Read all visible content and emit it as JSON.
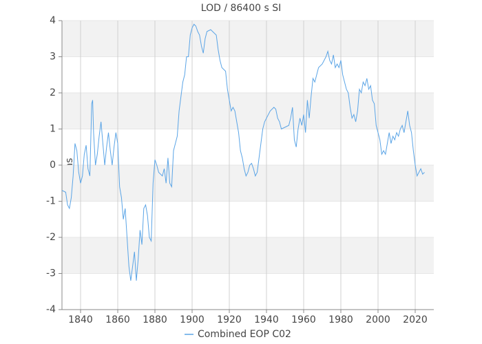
{
  "chart_data": {
    "type": "line",
    "title": "LOD / 86400 s SI",
    "y_label": "ms",
    "x": [
      1830,
      1832,
      1833,
      1834,
      1835,
      1836,
      1837,
      1838,
      1839,
      1840,
      1841,
      1842,
      1843,
      1844,
      1845,
      1846,
      1846.5,
      1847,
      1848,
      1849,
      1850,
      1851,
      1852,
      1853,
      1854,
      1855,
      1856,
      1857,
      1858,
      1859,
      1860,
      1861,
      1862,
      1863,
      1864,
      1865,
      1866,
      1867,
      1868,
      1869,
      1870,
      1871,
      1872,
      1873,
      1874,
      1875,
      1876,
      1877,
      1878,
      1879,
      1880,
      1881,
      1882,
      1884,
      1885,
      1886,
      1887,
      1888,
      1889,
      1890,
      1892,
      1893,
      1895,
      1896,
      1897,
      1898,
      1899,
      1900,
      1901,
      1902,
      1903,
      1904,
      1905,
      1906,
      1907,
      1908,
      1910,
      1911,
      1912,
      1913,
      1914,
      1915,
      1916,
      1918,
      1919,
      1920,
      1921,
      1922,
      1923,
      1924,
      1925,
      1926,
      1927,
      1928,
      1929,
      1930,
      1931,
      1932,
      1933,
      1934,
      1935,
      1936,
      1937,
      1938,
      1939,
      1940,
      1942,
      1944,
      1945,
      1946,
      1947,
      1948,
      1950,
      1952,
      1953,
      1954,
      1955,
      1956,
      1957,
      1958,
      1959,
      1960,
      1961,
      1962,
      1963,
      1964,
      1965,
      1966,
      1967,
      1968,
      1970,
      1972,
      1973,
      1974,
      1975,
      1976,
      1977,
      1978,
      1979,
      1980,
      1981,
      1982,
      1983,
      1984,
      1985,
      1986,
      1987,
      1988,
      1989,
      1990,
      1991,
      1992,
      1993,
      1994,
      1995,
      1996,
      1997,
      1998,
      1999,
      2000,
      2001,
      2002,
      2003,
      2004,
      2005,
      2006,
      2007,
      2008,
      2009,
      2010,
      2011,
      2012,
      2013,
      2014,
      2015,
      2016,
      2017,
      2018,
      2019,
      2020,
      2021,
      2022,
      2023,
      2024,
      2025
    ],
    "series": [
      {
        "name": "Combined EOP C02",
        "color": "#5aa4e6",
        "values": [
          -0.7,
          -0.75,
          -1.1,
          -1.2,
          -0.9,
          -0.3,
          0.6,
          0.4,
          -0.2,
          -0.5,
          -0.3,
          0.3,
          0.55,
          -0.1,
          -0.3,
          1.7,
          1.8,
          0.9,
          0.0,
          0.3,
          0.8,
          1.2,
          0.6,
          0.0,
          0.5,
          0.9,
          0.4,
          0.0,
          0.5,
          0.9,
          0.6,
          -0.6,
          -0.9,
          -1.5,
          -1.2,
          -2.0,
          -2.8,
          -3.2,
          -2.8,
          -2.4,
          -3.2,
          -2.6,
          -1.8,
          -2.2,
          -1.2,
          -1.1,
          -1.4,
          -2.0,
          -2.1,
          -0.5,
          0.15,
          0.0,
          -0.2,
          -0.3,
          -0.1,
          -0.5,
          0.2,
          -0.5,
          -0.6,
          0.4,
          0.8,
          1.5,
          2.3,
          2.5,
          3.0,
          3.0,
          3.6,
          3.8,
          3.9,
          3.85,
          3.7,
          3.6,
          3.3,
          3.1,
          3.5,
          3.7,
          3.75,
          3.7,
          3.65,
          3.6,
          3.2,
          2.9,
          2.7,
          2.6,
          2.1,
          1.8,
          1.5,
          1.6,
          1.5,
          1.2,
          0.9,
          0.4,
          0.2,
          -0.1,
          -0.3,
          -0.2,
          0.0,
          0.05,
          -0.1,
          -0.3,
          -0.2,
          0.2,
          0.6,
          1.0,
          1.2,
          1.3,
          1.5,
          1.6,
          1.55,
          1.3,
          1.2,
          1.0,
          1.05,
          1.1,
          1.3,
          1.6,
          0.7,
          0.5,
          1.0,
          1.3,
          1.1,
          1.4,
          0.9,
          1.8,
          1.3,
          1.9,
          2.4,
          2.3,
          2.5,
          2.7,
          2.8,
          3.0,
          3.15,
          2.9,
          2.8,
          3.05,
          2.7,
          2.8,
          2.7,
          2.9,
          2.5,
          2.3,
          2.1,
          2.0,
          1.6,
          1.3,
          1.4,
          1.2,
          1.5,
          2.1,
          2.0,
          2.3,
          2.2,
          2.4,
          2.1,
          2.2,
          1.8,
          1.7,
          1.1,
          0.9,
          0.7,
          0.3,
          0.4,
          0.3,
          0.6,
          0.9,
          0.6,
          0.8,
          0.7,
          0.9,
          0.8,
          1.0,
          1.1,
          0.9,
          1.2,
          1.5,
          1.1,
          0.9,
          0.4,
          0.0,
          -0.3,
          -0.2,
          -0.1,
          -0.25,
          -0.2
        ]
      }
    ],
    "xlim": [
      1830,
      2030
    ],
    "xticks": [
      1840,
      1860,
      1880,
      1900,
      1920,
      1940,
      1960,
      1980,
      2000,
      2020
    ],
    "ylim": [
      -4,
      4
    ],
    "yticks": [
      -4,
      -3,
      -2,
      -1,
      0,
      1,
      2,
      3,
      4
    ],
    "grid": true,
    "legend": "bottom"
  }
}
